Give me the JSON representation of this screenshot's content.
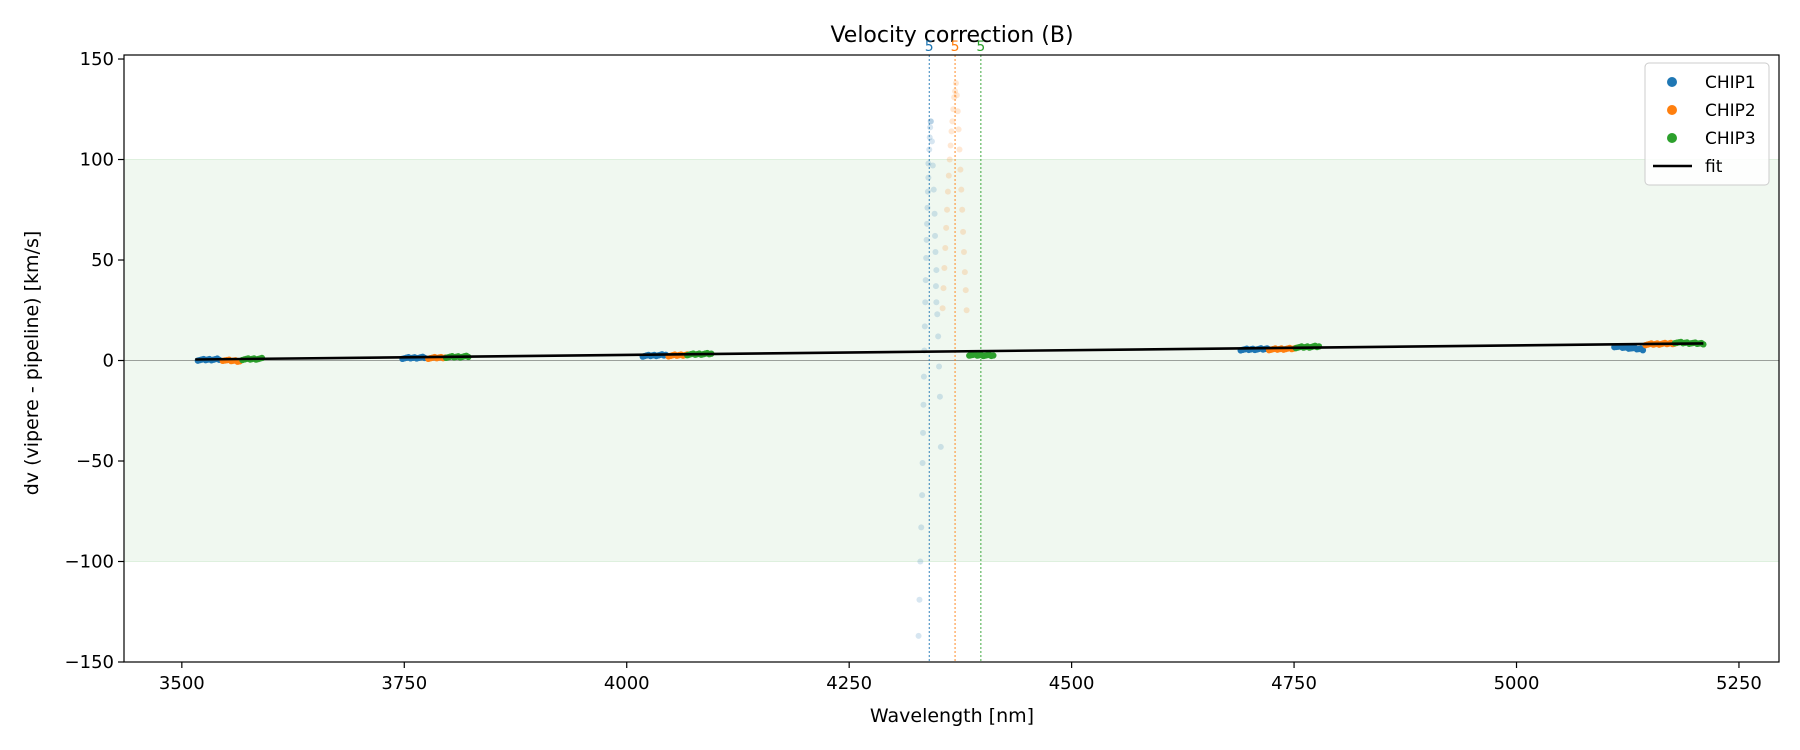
{
  "chart_data": {
    "type": "scatter",
    "title": "Velocity correction (B)",
    "xlabel": "Wavelength [nm]",
    "ylabel": "dv (vipere - pipeline) [km/s]",
    "xlim": [
      3435,
      5295
    ],
    "ylim": [
      -150,
      152
    ],
    "xticks": [
      3500,
      3750,
      4000,
      4250,
      4500,
      4750,
      5000,
      5250
    ],
    "yticks": [
      -150,
      -100,
      -50,
      0,
      50,
      100,
      150
    ],
    "ytick_labels": [
      "−150",
      "−100",
      "−50",
      "0",
      "50",
      "100",
      "150"
    ],
    "band": {
      "y0": -100,
      "y1": 100,
      "color": "#2ca02c"
    },
    "zero_line": 0,
    "legend": {
      "position": "top-right",
      "entries": [
        {
          "label": "CHIP1",
          "kind": "marker",
          "color": "#1f77b4"
        },
        {
          "label": "CHIP2",
          "kind": "marker",
          "color": "#ff7f0e"
        },
        {
          "label": "CHIP3",
          "kind": "marker",
          "color": "#2ca02c"
        },
        {
          "label": "fit",
          "kind": "line",
          "color": "#000000"
        }
      ]
    },
    "fit": {
      "x": [
        3515,
        5210
      ],
      "y": [
        0.5,
        8.5
      ],
      "color": "#000000"
    },
    "vlines": [
      {
        "x": 4340,
        "label": "5",
        "color": "#1f77b4"
      },
      {
        "x": 4369,
        "label": "5",
        "color": "#ff7f0e"
      },
      {
        "x": 4398,
        "label": "5",
        "color": "#2ca02c"
      }
    ],
    "series": [
      {
        "name": "CHIP1",
        "color": "#1f77b4",
        "segments": [
          {
            "x0": 3518,
            "x1": 3542,
            "y0": 0.3,
            "y1": 0.6
          },
          {
            "x0": 3748,
            "x1": 3773,
            "y0": 1.2,
            "y1": 1.5
          },
          {
            "x0": 4018,
            "x1": 4044,
            "y0": 2.3,
            "y1": 2.8
          },
          {
            "x0": 4690,
            "x1": 4722,
            "y0": 5.4,
            "y1": 5.8
          },
          {
            "x0": 5110,
            "x1": 5142,
            "y0": 7.0,
            "y1": 5.5
          }
        ],
        "outliers": {
          "x": [
            4328,
            4329,
            4330,
            4331,
            4332,
            4332.5,
            4333,
            4333.5,
            4334,
            4334.5,
            4335,
            4335.5,
            4336,
            4336.5,
            4337,
            4337.5,
            4338,
            4338.5,
            4339,
            4339,
            4340,
            4340.5,
            4341,
            4341.5,
            4342,
            4343,
            4344,
            4345,
            4346,
            4346.5,
            4347,
            4348
          ],
          "y": [
            -137,
            -119,
            -100,
            -83,
            -67,
            -51,
            -36,
            -22,
            -8,
            5,
            17,
            29,
            40,
            51,
            60,
            68,
            76,
            84,
            91,
            98,
            105,
            111,
            116,
            119,
            119,
            109,
            97,
            85,
            73,
            62,
            54,
            45
          ]
        },
        "outliers2": {
          "x": [
            4347.5,
            4348,
            4349,
            4350,
            4351,
            4352,
            4353
          ],
          "y": [
            37,
            29,
            23,
            12,
            -3,
            -18,
            -43
          ]
        }
      },
      {
        "name": "CHIP2",
        "color": "#ff7f0e",
        "segments": [
          {
            "x0": 3546,
            "x1": 3565,
            "y0": 0.2,
            "y1": -0.3
          },
          {
            "x0": 3777,
            "x1": 3796,
            "y0": 1.2,
            "y1": 1.6
          },
          {
            "x0": 4047,
            "x1": 4068,
            "y0": 2.4,
            "y1": 2.9
          },
          {
            "x0": 4722,
            "x1": 4752,
            "y0": 5.5,
            "y1": 6.0
          },
          {
            "x0": 5145,
            "x1": 5180,
            "y0": 8.0,
            "y1": 8.6
          }
        ],
        "outliers": {
          "x": [
            4355,
            4356,
            4357,
            4358,
            4359,
            4360,
            4361,
            4362,
            4363,
            4364,
            4365,
            4366,
            4367,
            4368,
            4369,
            4370,
            4371,
            4372,
            4373,
            4374,
            4375,
            4376,
            4377,
            4378,
            4379,
            4380,
            4381
          ],
          "y": [
            26,
            36,
            46,
            56,
            66,
            75,
            84,
            92,
            100,
            107,
            114,
            119,
            125,
            131,
            134,
            138,
            132,
            124,
            115,
            105,
            95,
            85,
            75,
            64,
            54,
            44,
            35
          ]
        },
        "outliers2": {
          "x": [
            4382
          ],
          "y": [
            25
          ]
        }
      },
      {
        "name": "CHIP3",
        "color": "#2ca02c",
        "segments": [
          {
            "x0": 3568,
            "x1": 3590,
            "y0": 0.6,
            "y1": 0.9
          },
          {
            "x0": 3797,
            "x1": 3822,
            "y0": 1.7,
            "y1": 2.0
          },
          {
            "x0": 4068,
            "x1": 4095,
            "y0": 3.0,
            "y1": 3.4
          },
          {
            "x0": 4385,
            "x1": 4412,
            "y0": 2.8,
            "y1": 2.5
          },
          {
            "x0": 4752,
            "x1": 4778,
            "y0": 6.5,
            "y1": 7.0
          },
          {
            "x0": 5178,
            "x1": 5210,
            "y0": 9.0,
            "y1": 8.4
          }
        ]
      }
    ]
  }
}
